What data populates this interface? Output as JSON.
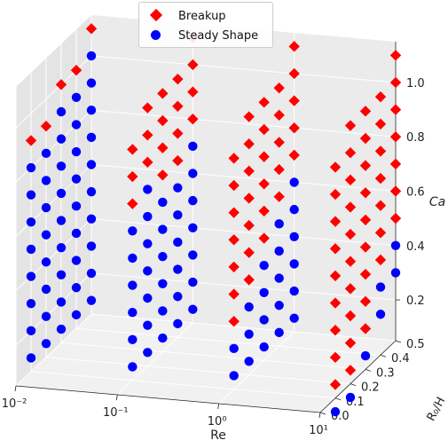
{
  "chart_data": {
    "type": "scatter3d",
    "title": "",
    "xlabel": "Re",
    "ylabel": "R₀/H",
    "zlabel": "Ca",
    "x_scale": "log",
    "xlim": [
      0.01,
      10
    ],
    "ylim": [
      0.0,
      0.5
    ],
    "zlim": [
      0.05,
      1.15
    ],
    "x_tick_labels": [
      "10⁻²",
      "10⁻¹",
      "10⁰",
      "10¹"
    ],
    "y_tick_labels": [
      "0.0",
      "0.1",
      "0.2",
      "0.3",
      "0.4",
      "0.5"
    ],
    "z_tick_labels": [
      "0.2",
      "0.4",
      "0.6",
      "0.8",
      "1.0"
    ],
    "grid": true,
    "legend_position": "top",
    "series": [
      {
        "name": "Breakup",
        "marker": "diamond",
        "color": "#ff0000",
        "points": [
          [
            0.01,
            0.1,
            0.9
          ],
          [
            0.01,
            0.2,
            0.9
          ],
          [
            0.01,
            0.3,
            1.0
          ],
          [
            0.01,
            0.4,
            1.0
          ],
          [
            0.01,
            0.5,
            1.1
          ],
          [
            0.1,
            0.1,
            0.7
          ],
          [
            0.1,
            0.1,
            0.8
          ],
          [
            0.1,
            0.1,
            0.9
          ],
          [
            0.1,
            0.2,
            0.8
          ],
          [
            0.1,
            0.2,
            0.9
          ],
          [
            0.1,
            0.2,
            1.0
          ],
          [
            0.1,
            0.3,
            0.7
          ],
          [
            0.1,
            0.3,
            0.8
          ],
          [
            0.1,
            0.3,
            0.9
          ],
          [
            0.1,
            0.3,
            1.0
          ],
          [
            0.1,
            0.4,
            0.7
          ],
          [
            0.1,
            0.4,
            0.8
          ],
          [
            0.1,
            0.4,
            0.9
          ],
          [
            0.1,
            0.4,
            1.0
          ],
          [
            0.1,
            0.5,
            0.8
          ],
          [
            0.1,
            0.5,
            0.9
          ],
          [
            0.1,
            0.5,
            1.0
          ],
          [
            0.1,
            0.5,
            1.1
          ],
          [
            1,
            0.1,
            0.3
          ],
          [
            1,
            0.1,
            0.4
          ],
          [
            1,
            0.1,
            0.5
          ],
          [
            1,
            0.1,
            0.6
          ],
          [
            1,
            0.1,
            0.7
          ],
          [
            1,
            0.1,
            0.8
          ],
          [
            1,
            0.1,
            0.9
          ],
          [
            1,
            0.2,
            0.4
          ],
          [
            1,
            0.2,
            0.5
          ],
          [
            1,
            0.2,
            0.6
          ],
          [
            1,
            0.2,
            0.7
          ],
          [
            1,
            0.2,
            0.8
          ],
          [
            1,
            0.2,
            0.9
          ],
          [
            1,
            0.2,
            1.0
          ],
          [
            1,
            0.3,
            0.5
          ],
          [
            1,
            0.3,
            0.6
          ],
          [
            1,
            0.3,
            0.7
          ],
          [
            1,
            0.3,
            0.8
          ],
          [
            1,
            0.3,
            0.9
          ],
          [
            1,
            0.3,
            1.0
          ],
          [
            1,
            0.4,
            0.6
          ],
          [
            1,
            0.4,
            0.7
          ],
          [
            1,
            0.4,
            0.8
          ],
          [
            1,
            0.4,
            0.9
          ],
          [
            1,
            0.4,
            1.0
          ],
          [
            1,
            0.5,
            0.7
          ],
          [
            1,
            0.5,
            0.8
          ],
          [
            1,
            0.5,
            0.9
          ],
          [
            1,
            0.5,
            1.0
          ],
          [
            1,
            0.5,
            1.1
          ],
          [
            10,
            0.1,
            0.1
          ],
          [
            10,
            0.1,
            0.2
          ],
          [
            10,
            0.1,
            0.3
          ],
          [
            10,
            0.1,
            0.4
          ],
          [
            10,
            0.1,
            0.5
          ],
          [
            10,
            0.1,
            0.6
          ],
          [
            10,
            0.1,
            0.7
          ],
          [
            10,
            0.1,
            0.8
          ],
          [
            10,
            0.1,
            0.9
          ],
          [
            10,
            0.2,
            0.1
          ],
          [
            10,
            0.2,
            0.2
          ],
          [
            10,
            0.2,
            0.3
          ],
          [
            10,
            0.2,
            0.4
          ],
          [
            10,
            0.2,
            0.5
          ],
          [
            10,
            0.2,
            0.6
          ],
          [
            10,
            0.2,
            0.7
          ],
          [
            10,
            0.2,
            0.8
          ],
          [
            10,
            0.2,
            0.9
          ],
          [
            10,
            0.2,
            1.0
          ],
          [
            10,
            0.3,
            0.2
          ],
          [
            10,
            0.3,
            0.3
          ],
          [
            10,
            0.3,
            0.4
          ],
          [
            10,
            0.3,
            0.5
          ],
          [
            10,
            0.3,
            0.6
          ],
          [
            10,
            0.3,
            0.7
          ],
          [
            10,
            0.3,
            0.8
          ],
          [
            10,
            0.3,
            0.9
          ],
          [
            10,
            0.3,
            1.0
          ],
          [
            10,
            0.4,
            0.4
          ],
          [
            10,
            0.4,
            0.5
          ],
          [
            10,
            0.4,
            0.6
          ],
          [
            10,
            0.4,
            0.7
          ],
          [
            10,
            0.4,
            0.8
          ],
          [
            10,
            0.4,
            0.9
          ],
          [
            10,
            0.4,
            1.0
          ],
          [
            10,
            0.5,
            0.5
          ],
          [
            10,
            0.5,
            0.6
          ],
          [
            10,
            0.5,
            0.7
          ],
          [
            10,
            0.5,
            0.8
          ],
          [
            10,
            0.5,
            0.9
          ],
          [
            10,
            0.5,
            1.0
          ],
          [
            10,
            0.5,
            1.1
          ]
        ]
      },
      {
        "name": "Steady Shape",
        "marker": "circle",
        "color": "#0000ff",
        "points": [
          [
            0.01,
            0.1,
            0.1
          ],
          [
            0.01,
            0.1,
            0.2
          ],
          [
            0.01,
            0.1,
            0.3
          ],
          [
            0.01,
            0.1,
            0.4
          ],
          [
            0.01,
            0.1,
            0.5
          ],
          [
            0.01,
            0.1,
            0.6
          ],
          [
            0.01,
            0.1,
            0.7
          ],
          [
            0.01,
            0.1,
            0.8
          ],
          [
            0.01,
            0.2,
            0.1
          ],
          [
            0.01,
            0.2,
            0.2
          ],
          [
            0.01,
            0.2,
            0.3
          ],
          [
            0.01,
            0.2,
            0.4
          ],
          [
            0.01,
            0.2,
            0.5
          ],
          [
            0.01,
            0.2,
            0.6
          ],
          [
            0.01,
            0.2,
            0.7
          ],
          [
            0.01,
            0.2,
            0.8
          ],
          [
            0.01,
            0.3,
            0.1
          ],
          [
            0.01,
            0.3,
            0.2
          ],
          [
            0.01,
            0.3,
            0.3
          ],
          [
            0.01,
            0.3,
            0.4
          ],
          [
            0.01,
            0.3,
            0.5
          ],
          [
            0.01,
            0.3,
            0.6
          ],
          [
            0.01,
            0.3,
            0.7
          ],
          [
            0.01,
            0.3,
            0.8
          ],
          [
            0.01,
            0.3,
            0.9
          ],
          [
            0.01,
            0.4,
            0.1
          ],
          [
            0.01,
            0.4,
            0.2
          ],
          [
            0.01,
            0.4,
            0.3
          ],
          [
            0.01,
            0.4,
            0.4
          ],
          [
            0.01,
            0.4,
            0.5
          ],
          [
            0.01,
            0.4,
            0.6
          ],
          [
            0.01,
            0.4,
            0.7
          ],
          [
            0.01,
            0.4,
            0.8
          ],
          [
            0.01,
            0.4,
            0.9
          ],
          [
            0.01,
            0.5,
            0.1
          ],
          [
            0.01,
            0.5,
            0.2
          ],
          [
            0.01,
            0.5,
            0.3
          ],
          [
            0.01,
            0.5,
            0.4
          ],
          [
            0.01,
            0.5,
            0.5
          ],
          [
            0.01,
            0.5,
            0.6
          ],
          [
            0.01,
            0.5,
            0.7
          ],
          [
            0.01,
            0.5,
            0.8
          ],
          [
            0.01,
            0.5,
            0.9
          ],
          [
            0.01,
            0.5,
            1.0
          ],
          [
            0.1,
            0.1,
            0.1
          ],
          [
            0.1,
            0.1,
            0.2
          ],
          [
            0.1,
            0.1,
            0.3
          ],
          [
            0.1,
            0.1,
            0.4
          ],
          [
            0.1,
            0.1,
            0.5
          ],
          [
            0.1,
            0.1,
            0.6
          ],
          [
            0.1,
            0.2,
            0.1
          ],
          [
            0.1,
            0.2,
            0.2
          ],
          [
            0.1,
            0.2,
            0.3
          ],
          [
            0.1,
            0.2,
            0.4
          ],
          [
            0.1,
            0.2,
            0.5
          ],
          [
            0.1,
            0.2,
            0.6
          ],
          [
            0.1,
            0.2,
            0.7
          ],
          [
            0.1,
            0.3,
            0.1
          ],
          [
            0.1,
            0.3,
            0.2
          ],
          [
            0.1,
            0.3,
            0.3
          ],
          [
            0.1,
            0.3,
            0.4
          ],
          [
            0.1,
            0.3,
            0.5
          ],
          [
            0.1,
            0.3,
            0.6
          ],
          [
            0.1,
            0.4,
            0.1
          ],
          [
            0.1,
            0.4,
            0.2
          ],
          [
            0.1,
            0.4,
            0.3
          ],
          [
            0.1,
            0.4,
            0.4
          ],
          [
            0.1,
            0.4,
            0.5
          ],
          [
            0.1,
            0.4,
            0.6
          ],
          [
            0.1,
            0.5,
            0.1
          ],
          [
            0.1,
            0.5,
            0.2
          ],
          [
            0.1,
            0.5,
            0.3
          ],
          [
            0.1,
            0.5,
            0.4
          ],
          [
            0.1,
            0.5,
            0.5
          ],
          [
            0.1,
            0.5,
            0.6
          ],
          [
            0.1,
            0.5,
            0.7
          ],
          [
            1,
            0.1,
            0.1
          ],
          [
            1,
            0.1,
            0.2
          ],
          [
            1,
            0.2,
            0.1
          ],
          [
            1,
            0.2,
            0.2
          ],
          [
            1,
            0.2,
            0.3
          ],
          [
            1,
            0.3,
            0.1
          ],
          [
            1,
            0.3,
            0.2
          ],
          [
            1,
            0.3,
            0.3
          ],
          [
            1,
            0.3,
            0.4
          ],
          [
            1,
            0.4,
            0.1
          ],
          [
            1,
            0.4,
            0.2
          ],
          [
            1,
            0.4,
            0.3
          ],
          [
            1,
            0.4,
            0.4
          ],
          [
            1,
            0.4,
            0.5
          ],
          [
            1,
            0.5,
            0.1
          ],
          [
            1,
            0.5,
            0.2
          ],
          [
            1,
            0.5,
            0.3
          ],
          [
            1,
            0.5,
            0.4
          ],
          [
            1,
            0.5,
            0.5
          ],
          [
            1,
            0.5,
            0.6
          ],
          [
            10,
            0.1,
            0.0
          ],
          [
            10,
            0.2,
            0.0
          ],
          [
            10,
            0.3,
            0.1
          ],
          [
            10,
            0.4,
            0.2
          ],
          [
            10,
            0.4,
            0.3
          ],
          [
            10,
            0.5,
            0.3
          ],
          [
            10,
            0.5,
            0.4
          ]
        ]
      }
    ]
  }
}
